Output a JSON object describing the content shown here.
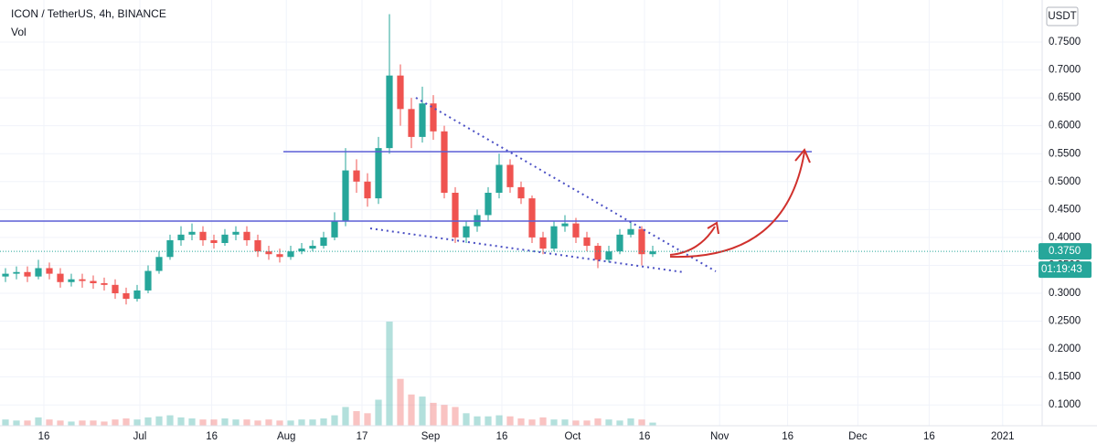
{
  "chart_data": {
    "type": "candlestick",
    "title": "ICON / TetherUS, 4h, BINANCE",
    "volume_label": "Vol",
    "currency": "USDT",
    "countdown": "01:19:43",
    "last_price": {
      "value": 0.375,
      "label": "0.3750"
    },
    "up_color": "#26a69a",
    "down_color": "#ef5350",
    "x": [
      0.5,
      1.5,
      2.5,
      3.5,
      4.5,
      5.5,
      6.5,
      7.5,
      8.5,
      9.5,
      10.5,
      11.5,
      12.5,
      13.5,
      14.5,
      15.5,
      16.5,
      17.5,
      18.5,
      19.5,
      20.5,
      21.5,
      22.5,
      23.5,
      24.5,
      25.5,
      26.5,
      27.5,
      28.5,
      29.5,
      30.5,
      31.5,
      32.5,
      33.5,
      34.5,
      35.5,
      36.5,
      37.5,
      38.5,
      39.5,
      40.5,
      41.5,
      42.5,
      43.5,
      44.5,
      45.5,
      46.5,
      47.5,
      48.5,
      49.5,
      50.5,
      51.5,
      52.5,
      53.5,
      54.5,
      55.5,
      56.5,
      57.5,
      58.5,
      59.5
    ],
    "open": [
      0.33,
      0.335,
      0.338,
      0.33,
      0.345,
      0.335,
      0.32,
      0.325,
      0.322,
      0.318,
      0.315,
      0.3,
      0.29,
      0.305,
      0.34,
      0.365,
      0.395,
      0.405,
      0.41,
      0.395,
      0.39,
      0.405,
      0.41,
      0.395,
      0.375,
      0.37,
      0.365,
      0.375,
      0.38,
      0.385,
      0.4,
      0.43,
      0.52,
      0.5,
      0.47,
      0.56,
      0.69,
      0.63,
      0.58,
      0.64,
      0.59,
      0.48,
      0.4,
      0.42,
      0.44,
      0.48,
      0.53,
      0.49,
      0.47,
      0.4,
      0.38,
      0.42,
      0.425,
      0.4,
      0.385,
      0.36,
      0.375,
      0.405,
      0.415,
      0.37
    ],
    "high": [
      0.345,
      0.348,
      0.348,
      0.36,
      0.355,
      0.345,
      0.335,
      0.335,
      0.332,
      0.328,
      0.325,
      0.31,
      0.315,
      0.35,
      0.375,
      0.405,
      0.42,
      0.425,
      0.42,
      0.405,
      0.415,
      0.42,
      0.42,
      0.405,
      0.385,
      0.38,
      0.385,
      0.39,
      0.395,
      0.41,
      0.445,
      0.56,
      0.54,
      0.515,
      0.58,
      0.8,
      0.71,
      0.65,
      0.67,
      0.655,
      0.6,
      0.49,
      0.43,
      0.45,
      0.49,
      0.55,
      0.54,
      0.5,
      0.475,
      0.41,
      0.43,
      0.44,
      0.435,
      0.41,
      0.39,
      0.385,
      0.415,
      0.43,
      0.42,
      0.385
    ],
    "low": [
      0.32,
      0.325,
      0.32,
      0.325,
      0.325,
      0.31,
      0.312,
      0.31,
      0.308,
      0.305,
      0.29,
      0.28,
      0.285,
      0.3,
      0.335,
      0.36,
      0.385,
      0.395,
      0.385,
      0.38,
      0.385,
      0.395,
      0.385,
      0.365,
      0.36,
      0.355,
      0.36,
      0.37,
      0.375,
      0.38,
      0.395,
      0.42,
      0.48,
      0.455,
      0.46,
      0.55,
      0.6,
      0.56,
      0.57,
      0.575,
      0.47,
      0.39,
      0.39,
      0.41,
      0.43,
      0.47,
      0.48,
      0.46,
      0.39,
      0.37,
      0.375,
      0.41,
      0.39,
      0.375,
      0.345,
      0.355,
      0.37,
      0.4,
      0.35,
      0.365
    ],
    "close": [
      0.335,
      0.338,
      0.33,
      0.345,
      0.335,
      0.32,
      0.325,
      0.322,
      0.318,
      0.315,
      0.3,
      0.29,
      0.305,
      0.34,
      0.365,
      0.395,
      0.405,
      0.41,
      0.395,
      0.39,
      0.405,
      0.41,
      0.395,
      0.375,
      0.37,
      0.365,
      0.375,
      0.38,
      0.385,
      0.4,
      0.43,
      0.52,
      0.5,
      0.47,
      0.56,
      0.69,
      0.63,
      0.58,
      0.64,
      0.59,
      0.48,
      0.4,
      0.42,
      0.44,
      0.48,
      0.53,
      0.49,
      0.47,
      0.4,
      0.38,
      0.42,
      0.425,
      0.4,
      0.385,
      0.36,
      0.375,
      0.405,
      0.415,
      0.37,
      0.375
    ],
    "volume": [
      6,
      5,
      5,
      8,
      6,
      5,
      4,
      5,
      5,
      4,
      6,
      7,
      6,
      8,
      9,
      10,
      8,
      7,
      6,
      6,
      7,
      6,
      6,
      5,
      6,
      5,
      5,
      6,
      6,
      7,
      10,
      18,
      14,
      12,
      25,
      100,
      45,
      30,
      28,
      22,
      20,
      18,
      12,
      9,
      9,
      10,
      9,
      7,
      6,
      8,
      6,
      6,
      5,
      5,
      7,
      6,
      5,
      7,
      6,
      3
    ],
    "xlim": [
      0,
      95
    ],
    "xticks": [
      {
        "value": 4,
        "label": "16"
      },
      {
        "value": 12.75,
        "label": "Jul"
      },
      {
        "value": 19.3,
        "label": "16"
      },
      {
        "value": 26.1,
        "label": "Aug"
      },
      {
        "value": 33,
        "label": "17"
      },
      {
        "value": 39.25,
        "label": "Sep"
      },
      {
        "value": 45.75,
        "label": "16"
      },
      {
        "value": 52.2,
        "label": "Oct"
      },
      {
        "value": 58.75,
        "label": "16"
      },
      {
        "value": 65.6,
        "label": "Nov"
      },
      {
        "value": 71.8,
        "label": "16"
      },
      {
        "value": 78.2,
        "label": "Dec"
      },
      {
        "value": 84.7,
        "label": "16"
      },
      {
        "value": 91.4,
        "label": "2021"
      }
    ],
    "ylim": [
      0.0627,
      0.8253
    ],
    "yticks": [
      {
        "value": 0.1,
        "label": "0.1000"
      },
      {
        "value": 0.15,
        "label": "0.1500"
      },
      {
        "value": 0.2,
        "label": "0.2000"
      },
      {
        "value": 0.25,
        "label": "0.2500"
      },
      {
        "value": 0.3,
        "label": "0.3000"
      },
      {
        "value": 0.35,
        "label": "0.3500"
      },
      {
        "value": 0.4,
        "label": "0.4000"
      },
      {
        "value": 0.45,
        "label": "0.4500"
      },
      {
        "value": 0.5,
        "label": "0.5000"
      },
      {
        "value": 0.55,
        "label": "0.5500"
      },
      {
        "value": 0.6,
        "label": "0.6000"
      },
      {
        "value": 0.65,
        "label": "0.6500"
      },
      {
        "value": 0.7,
        "label": "0.7000"
      },
      {
        "value": 0.75,
        "label": "0.7500"
      }
    ],
    "grid": true
  }
}
